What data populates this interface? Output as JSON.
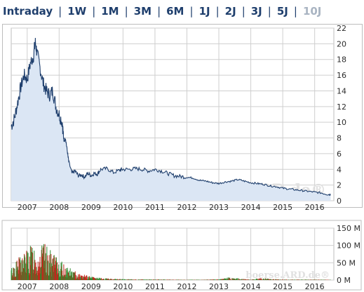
{
  "tabs": [
    {
      "label": "Intraday",
      "active": true
    },
    {
      "label": "1W",
      "active": false
    },
    {
      "label": "1M",
      "active": false
    },
    {
      "label": "3M",
      "active": false
    },
    {
      "label": "6M",
      "active": false
    },
    {
      "label": "1J",
      "active": false
    },
    {
      "label": "2J",
      "active": false
    },
    {
      "label": "3J",
      "active": false
    },
    {
      "label": "5J",
      "active": false
    },
    {
      "label": "10J",
      "active": false,
      "disabled": true
    }
  ],
  "watermark": {
    "price": "boerse.ARD.de®",
    "volume": "boerse.ARD.de®"
  },
  "colors": {
    "line": "#1f3f6d",
    "fill": "#dbe6f4",
    "grid": "#cfcfcf",
    "vol_up": "#2e8b2e",
    "vol_down": "#c0281c"
  },
  "chart_data": [
    {
      "type": "area",
      "x_ticks": [
        "2007",
        "2008",
        "2009",
        "2010",
        "2011",
        "2012",
        "2013",
        "2014",
        "2015",
        "2016"
      ],
      "y_ticks": [
        "0",
        "2",
        "4",
        "6",
        "8",
        "10",
        "12",
        "14",
        "16",
        "18",
        "20",
        "22"
      ],
      "ylim": [
        0,
        22
      ],
      "xlim": [
        2006.5,
        2016.6
      ],
      "grid": true,
      "series": [
        {
          "points": [
            [
              2006.5,
              9.5
            ],
            [
              2006.6,
              10.5
            ],
            [
              2006.7,
              12.5
            ],
            [
              2006.8,
              14.5
            ],
            [
              2006.9,
              16.0
            ],
            [
              2007.0,
              15.5
            ],
            [
              2007.1,
              17.5
            ],
            [
              2007.2,
              18.5
            ],
            [
              2007.25,
              20.3
            ],
            [
              2007.3,
              19.0
            ],
            [
              2007.4,
              17.0
            ],
            [
              2007.5,
              15.0
            ],
            [
              2007.6,
              14.0
            ],
            [
              2007.7,
              13.5
            ],
            [
              2007.8,
              14.0
            ],
            [
              2007.9,
              12.0
            ],
            [
              2008.0,
              11.0
            ],
            [
              2008.1,
              10.0
            ],
            [
              2008.15,
              7.5
            ],
            [
              2008.2,
              8.0
            ],
            [
              2008.25,
              6.5
            ],
            [
              2008.3,
              5.0
            ],
            [
              2008.4,
              3.5
            ],
            [
              2008.5,
              3.8
            ],
            [
              2008.6,
              3.2
            ],
            [
              2008.7,
              3.3
            ],
            [
              2008.8,
              3.0
            ],
            [
              2008.9,
              3.5
            ],
            [
              2009.0,
              3.2
            ],
            [
              2009.1,
              3.5
            ],
            [
              2009.2,
              3.4
            ],
            [
              2009.3,
              4.0
            ],
            [
              2009.5,
              4.1
            ],
            [
              2009.7,
              3.6
            ],
            [
              2009.9,
              3.9
            ],
            [
              2010.0,
              4.0
            ],
            [
              2010.2,
              4.0
            ],
            [
              2010.4,
              4.1
            ],
            [
              2010.6,
              4.0
            ],
            [
              2010.8,
              3.8
            ],
            [
              2011.0,
              4.0
            ],
            [
              2011.2,
              3.8
            ],
            [
              2011.4,
              3.5
            ],
            [
              2011.6,
              3.2
            ],
            [
              2011.8,
              3.1
            ],
            [
              2012.0,
              3.0
            ],
            [
              2012.2,
              2.9
            ],
            [
              2012.4,
              2.6
            ],
            [
              2012.6,
              2.5
            ],
            [
              2012.8,
              2.3
            ],
            [
              2013.0,
              2.2
            ],
            [
              2013.2,
              2.4
            ],
            [
              2013.4,
              2.5
            ],
            [
              2013.6,
              2.7
            ],
            [
              2013.8,
              2.5
            ],
            [
              2014.0,
              2.3
            ],
            [
              2014.2,
              2.2
            ],
            [
              2014.4,
              2.1
            ],
            [
              2014.6,
              1.9
            ],
            [
              2014.8,
              1.8
            ],
            [
              2015.0,
              1.6
            ],
            [
              2015.2,
              1.5
            ],
            [
              2015.4,
              1.4
            ],
            [
              2015.6,
              1.3
            ],
            [
              2015.8,
              1.2
            ],
            [
              2016.0,
              1.1
            ],
            [
              2016.2,
              1.0
            ],
            [
              2016.4,
              0.8
            ],
            [
              2016.5,
              0.8
            ]
          ]
        }
      ]
    },
    {
      "type": "bar",
      "x_ticks": [
        "2007",
        "2008",
        "2009",
        "2010",
        "2011",
        "2012",
        "2013",
        "2014",
        "2015",
        "2016"
      ],
      "y_ticks": [
        "0 M",
        "50 M",
        "100 M",
        "150 M"
      ],
      "ylim": [
        0,
        150
      ],
      "xlim": [
        2006.5,
        2016.6
      ],
      "grid": true,
      "series": [
        {
          "name": "volume",
          "values_profile": [
            [
              2006.5,
              35
            ],
            [
              2006.7,
              60
            ],
            [
              2006.9,
              80
            ],
            [
              2007.1,
              95
            ],
            [
              2007.2,
              110
            ],
            [
              2007.3,
              70
            ],
            [
              2007.5,
              105
            ],
            [
              2007.6,
              95
            ],
            [
              2007.8,
              75
            ],
            [
              2008.0,
              55
            ],
            [
              2008.2,
              45
            ],
            [
              2008.4,
              30
            ],
            [
              2008.6,
              20
            ],
            [
              2008.8,
              15
            ],
            [
              2009.0,
              10
            ],
            [
              2009.3,
              6
            ],
            [
              2009.6,
              4
            ],
            [
              2010.0,
              3
            ],
            [
              2010.5,
              2
            ],
            [
              2011.0,
              2
            ],
            [
              2012.0,
              1
            ],
            [
              2013.0,
              2
            ],
            [
              2013.3,
              8
            ],
            [
              2014.0,
              1.5
            ],
            [
              2014.3,
              6
            ],
            [
              2015.0,
              1.5
            ],
            [
              2016.0,
              1.5
            ],
            [
              2016.5,
              1
            ]
          ]
        }
      ]
    }
  ]
}
